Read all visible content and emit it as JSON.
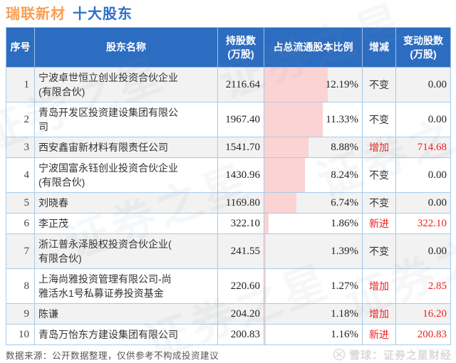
{
  "title": {
    "stock": "瑞联新材",
    "suffix": "十大股东"
  },
  "chart_data": {
    "type": "table",
    "title": "瑞联新材 十大股东",
    "columns": [
      "序号",
      "股东名称",
      "持股数\n(万股)",
      "占总流通股本比例",
      "增减",
      "变动股数\n(万股)"
    ],
    "bar_column": "占总流通股本比例",
    "rows": [
      {
        "no": "1",
        "name": "宁波卓世恒立创业投资合伙企业(有限合伙)",
        "shares": "2116.64",
        "ratio": "12.19%",
        "ratio_value": 12.19,
        "change": "不变",
        "change_type": "same",
        "delta": "0.00"
      },
      {
        "no": "2",
        "name": "青岛开发区投资建设集团有限公司",
        "shares": "1967.40",
        "ratio": "11.33%",
        "ratio_value": 11.33,
        "change": "不变",
        "change_type": "same",
        "delta": "0.00"
      },
      {
        "no": "3",
        "name": "西安鑫宙新材料有限责任公司",
        "shares": "1541.70",
        "ratio": "8.88%",
        "ratio_value": 8.88,
        "change": "增加",
        "change_type": "up",
        "delta": "714.68"
      },
      {
        "no": "4",
        "name": "宁波国富永钰创业投资合伙企业(有限合伙)",
        "shares": "1430.96",
        "ratio": "8.24%",
        "ratio_value": 8.24,
        "change": "不变",
        "change_type": "same",
        "delta": "0.00"
      },
      {
        "no": "5",
        "name": "刘晓春",
        "shares": "1169.80",
        "ratio": "6.74%",
        "ratio_value": 6.74,
        "change": "不变",
        "change_type": "same",
        "delta": "0.00"
      },
      {
        "no": "6",
        "name": "李正茂",
        "shares": "322.10",
        "ratio": "1.86%",
        "ratio_value": 1.86,
        "change": "新进",
        "change_type": "new",
        "delta": "322.10"
      },
      {
        "no": "7",
        "name": "浙江普永泽股权投资合伙企业(有限合伙)",
        "shares": "241.55",
        "ratio": "1.39%",
        "ratio_value": 1.39,
        "change": "不变",
        "change_type": "same",
        "delta": "0.00"
      },
      {
        "no": "8",
        "name": "上海尚雅投资管理有限公司-尚雅活水1号私募证券投资基金",
        "shares": "220.60",
        "ratio": "1.27%",
        "ratio_value": 1.27,
        "change": "增加",
        "change_type": "up",
        "delta": "2.85"
      },
      {
        "no": "9",
        "name": "陈谦",
        "shares": "204.20",
        "ratio": "1.18%",
        "ratio_value": 1.18,
        "change": "增加",
        "change_type": "up",
        "delta": "16.20"
      },
      {
        "no": "10",
        "name": "青岛万怡东方建设集团有限公司",
        "shares": "200.83",
        "ratio": "1.16%",
        "ratio_value": 1.16,
        "change": "新进",
        "change_type": "new",
        "delta": "200.83"
      }
    ]
  },
  "watermark": {
    "text": "证券之星"
  },
  "footer": {
    "source_note": "数据来源：公开数据整理，仅供参考不构成投资建议",
    "brand": "雪球：证券之星财经"
  },
  "colors": {
    "header_bg": "#2d6dc1",
    "title_orange": "#fa9e51",
    "title_blue": "#2e6fc8",
    "bar_pink": "#fbd3d3",
    "up_red": "#ee2222",
    "border_blue": "#a7cbe9",
    "zebra_gray": "#f2f2f2"
  }
}
